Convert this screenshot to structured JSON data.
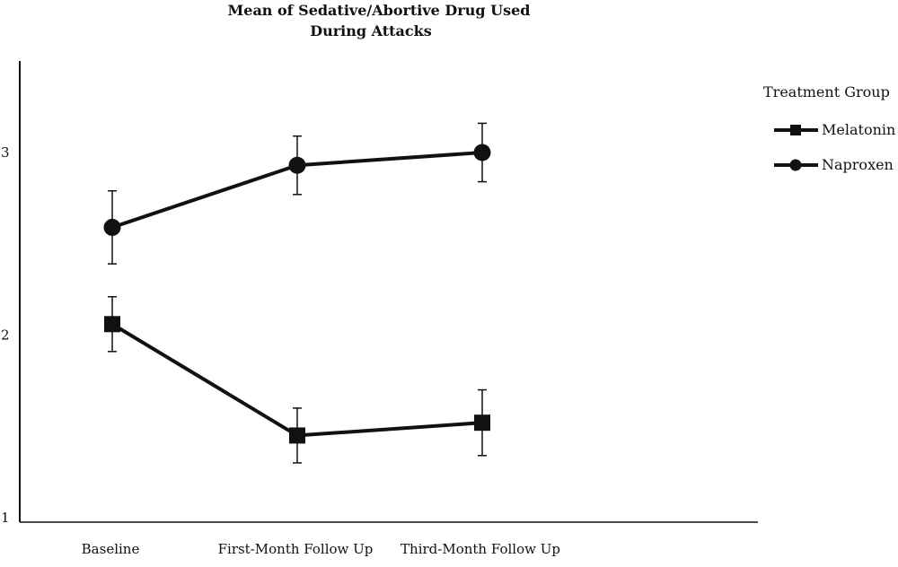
{
  "chart_data": {
    "type": "line",
    "title_lines": [
      "Mean of Sedative/Abortive Drug Used",
      "During Attacks"
    ],
    "xlabel": "",
    "ylabel": "",
    "categories": [
      "Baseline",
      "First-Month Follow Up",
      "Third-Month Follow Up"
    ],
    "yticks": [
      "1",
      "2",
      "3"
    ],
    "ylim": [
      1,
      3.5
    ],
    "grid": false,
    "error_bars": true,
    "legend": {
      "title": "Treatment Group",
      "placement": "top-right"
    },
    "series": [
      {
        "name": "Melatonin",
        "marker": "square",
        "values": [
          2.06,
          1.45,
          1.52
        ],
        "lower": [
          1.91,
          1.3,
          1.34
        ],
        "upper": [
          2.21,
          1.6,
          1.7
        ]
      },
      {
        "name": "Naproxen",
        "marker": "circle",
        "values": [
          2.59,
          2.93,
          3.0
        ],
        "lower": [
          2.39,
          2.77,
          2.84
        ],
        "upper": [
          2.79,
          3.09,
          3.16
        ]
      }
    ],
    "colors": {
      "line": "#111111",
      "axis": "#111111",
      "background": "#ffffff"
    }
  }
}
